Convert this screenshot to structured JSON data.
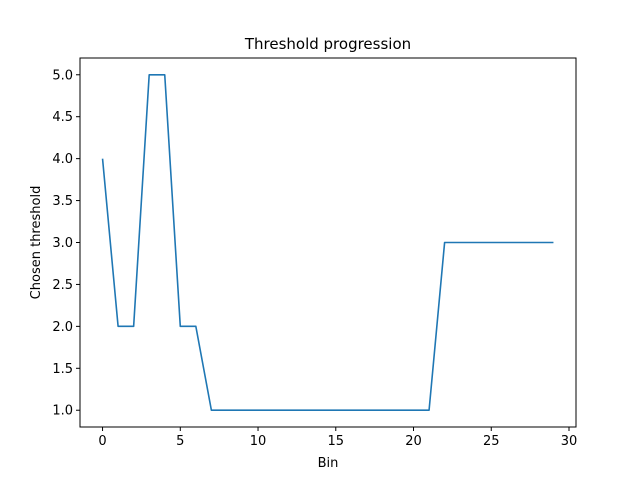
{
  "chart_data": {
    "type": "line",
    "title": "Threshold progression",
    "xlabel": "Bin",
    "ylabel": "Chosen threshold",
    "xlim": [
      -1.45,
      30.45
    ],
    "ylim": [
      0.8,
      5.2
    ],
    "xticks": [
      0,
      5,
      10,
      15,
      20,
      25,
      30
    ],
    "xtick_labels": [
      "0",
      "5",
      "10",
      "15",
      "20",
      "25",
      "30"
    ],
    "yticks": [
      1.0,
      1.5,
      2.0,
      2.5,
      3.0,
      3.5,
      4.0,
      4.5,
      5.0
    ],
    "ytick_labels": [
      "1.0",
      "1.5",
      "2.0",
      "2.5",
      "3.0",
      "3.5",
      "4.0",
      "4.5",
      "5.0"
    ],
    "grid": false,
    "series": [
      {
        "name": "Chosen threshold",
        "color": "#1f77b4",
        "x": [
          0,
          1,
          2,
          3,
          4,
          5,
          6,
          7,
          8,
          9,
          10,
          11,
          12,
          13,
          14,
          15,
          16,
          17,
          18,
          19,
          20,
          21,
          22,
          23,
          24,
          25,
          26,
          27,
          28,
          29
        ],
        "y": [
          4,
          2,
          2,
          5,
          5,
          2,
          2,
          1,
          1,
          1,
          1,
          1,
          1,
          1,
          1,
          1,
          1,
          1,
          1,
          1,
          1,
          1,
          3,
          3,
          3,
          3,
          3,
          3,
          3,
          3
        ]
      }
    ]
  }
}
